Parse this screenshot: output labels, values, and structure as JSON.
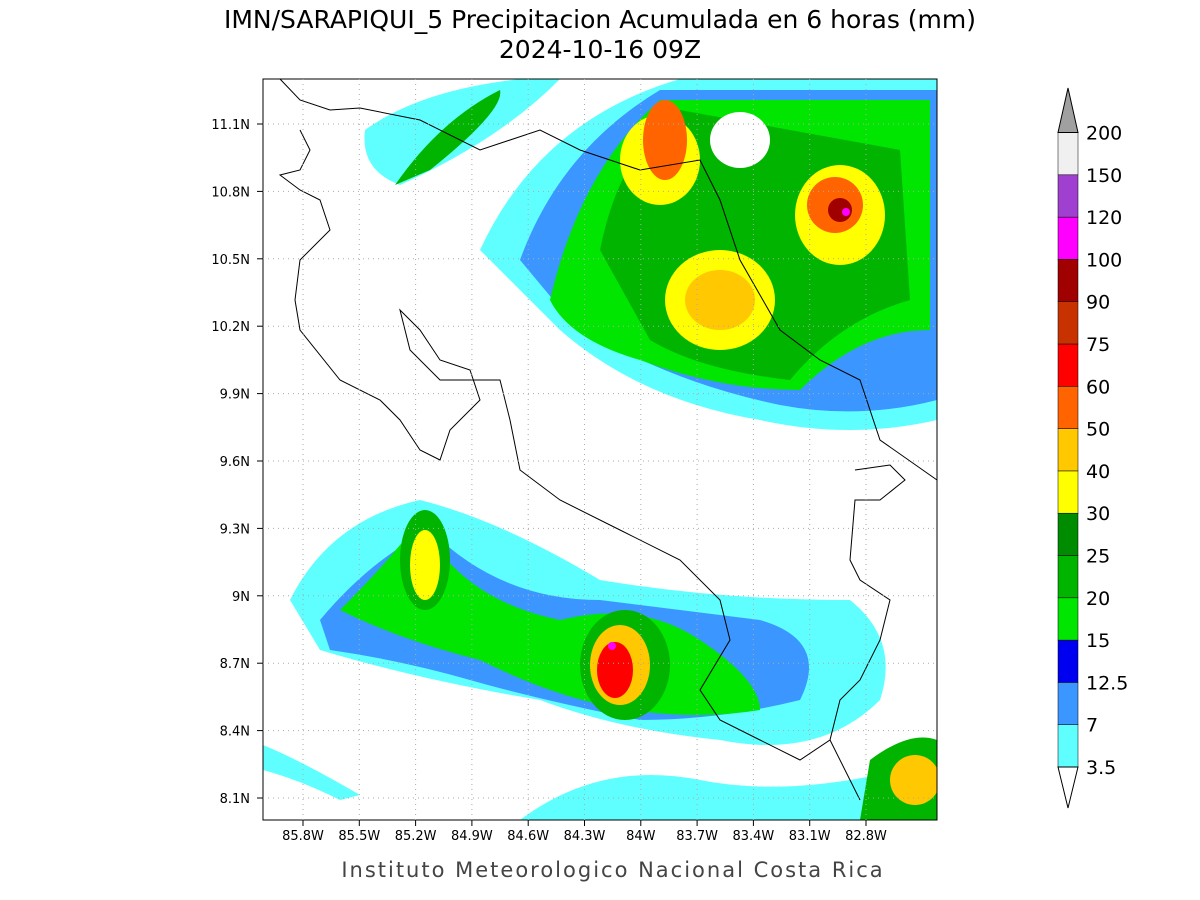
{
  "header": {
    "title": "IMN/SARAPIQUI_5 Precipitacion Acumulada en 6 horas (mm)",
    "subtitle": "2024-10-16 09Z"
  },
  "map": {
    "lon_labels": [
      "85.8W",
      "85.5W",
      "85.2W",
      "84.9W",
      "84.6W",
      "84.3W",
      "84W",
      "83.7W",
      "83.4W",
      "83.1W",
      "82.8W"
    ],
    "lat_labels": [
      "11.1N",
      "10.8N",
      "10.5N",
      "10.2N",
      "9.9N",
      "9.6N",
      "9.3N",
      "9N",
      "8.7N",
      "8.4N",
      "8.1N"
    ]
  },
  "colorbar": {
    "levels": [
      3.5,
      7,
      12.5,
      15,
      20,
      25,
      30,
      40,
      50,
      60,
      75,
      90,
      100,
      120,
      150,
      200
    ],
    "colors": [
      "#60ffff",
      "#3c96ff",
      "#0000f0",
      "#00e600",
      "#00b400",
      "#008c00",
      "#ffff00",
      "#ffc800",
      "#ff6400",
      "#ff0000",
      "#c83200",
      "#a00000",
      "#ff00ff",
      "#a040d0",
      "#f0f0f0"
    ]
  },
  "footer": "Instituto Meteorologico Nacional Costa Rica"
}
